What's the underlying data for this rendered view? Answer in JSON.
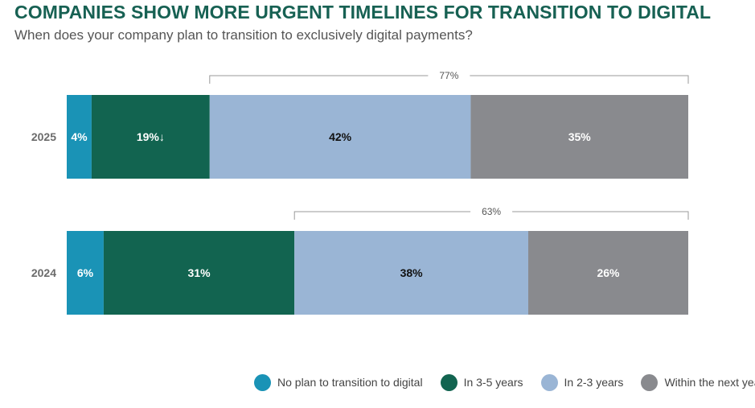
{
  "title": "COMPANIES SHOW MORE URGENT TIMELINES FOR TRANSITION TO DIGITAL",
  "subtitle": "When does your company plan to transition to exclusively digital payments?",
  "colors": {
    "no_plan": "#1a93b6",
    "three_five": "#126450",
    "two_three": "#9ab5d5",
    "next_year": "#898a8e"
  },
  "chart_data": {
    "type": "bar",
    "orientation": "horizontal",
    "stacked": true,
    "unit": "%",
    "categories": [
      "2025",
      "2024"
    ],
    "series": [
      {
        "name": "No plan to transition to digital",
        "values": [
          4,
          6
        ],
        "labels": [
          "4%",
          "6%"
        ],
        "color": "#1a93b6"
      },
      {
        "name": "In 3-5 years",
        "values": [
          19,
          31
        ],
        "labels": [
          "19%↓",
          "31%"
        ],
        "color": "#126450"
      },
      {
        "name": "In 2-3 years",
        "values": [
          42,
          38
        ],
        "labels": [
          "42%",
          "38%"
        ],
        "color": "#9ab5d5"
      },
      {
        "name": "Within the next year",
        "values": [
          35,
          26
        ],
        "labels": [
          "35%",
          "26%"
        ],
        "color": "#898a8e"
      }
    ],
    "brackets": [
      {
        "category": "2025",
        "label": "77%",
        "series_covered": [
          "In 2-3 years",
          "Within the next year"
        ]
      },
      {
        "category": "2024",
        "label": "63%",
        "series_covered": [
          "In 2-3 years",
          "Within the next year"
        ]
      }
    ],
    "xlim": [
      0,
      100
    ],
    "legend_position": "bottom-right",
    "grid": false
  }
}
